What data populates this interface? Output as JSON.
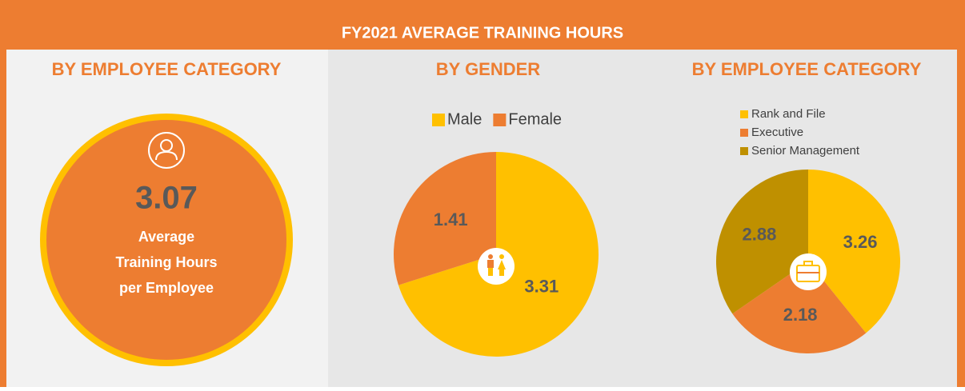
{
  "header": {
    "title": "FY2021 AVERAGE TRAINING HOURS"
  },
  "summary": {
    "title": "BY EMPLOYEE CATEGORY",
    "value": "3.07",
    "label_lines": [
      "Average",
      "Training Hours",
      "per Employee"
    ]
  },
  "chart_data": [
    {
      "type": "pie",
      "title": "BY GENDER",
      "categories": [
        "Male",
        "Female"
      ],
      "values": [
        3.31,
        1.41
      ],
      "colors": [
        "#ffc000",
        "#ed7d31"
      ],
      "legend": "top"
    },
    {
      "type": "pie",
      "title": "BY EMPLOYEE CATEGORY",
      "categories": [
        "Rank and File",
        "Executive",
        "Senior Management"
      ],
      "values": [
        3.26,
        2.18,
        2.88
      ],
      "colors": [
        "#ffc000",
        "#ed7d31",
        "#bf9000"
      ],
      "legend": "top"
    }
  ]
}
